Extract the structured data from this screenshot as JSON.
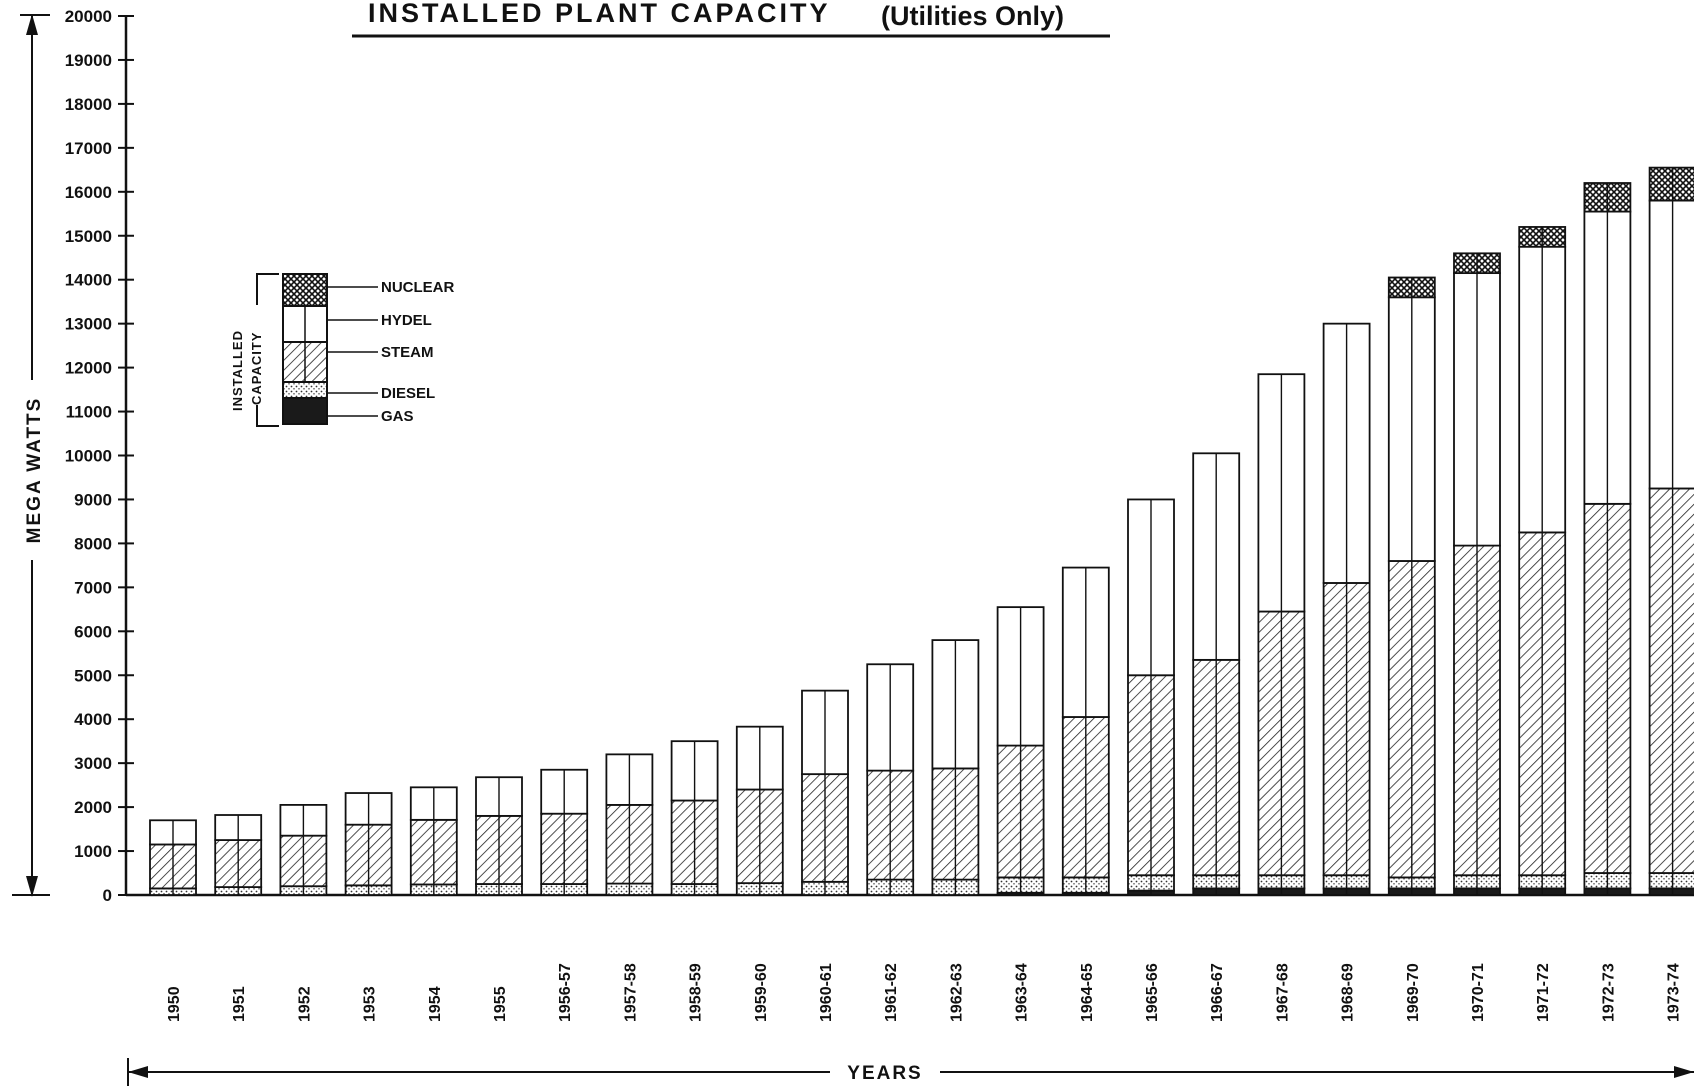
{
  "chart_data": {
    "type": "bar",
    "stacked": true,
    "title": "INSTALLED PLANT CAPACITY",
    "subtitle": "(Utilities Only)",
    "xlabel": "YEARS",
    "ylabel": "MEGA WATTS",
    "ylim": [
      0,
      20000
    ],
    "yticks": [
      0,
      1000,
      2000,
      3000,
      4000,
      5000,
      6000,
      7000,
      8000,
      9000,
      10000,
      11000,
      12000,
      13000,
      14000,
      15000,
      16000,
      17000,
      18000,
      19000,
      20000
    ],
    "ytick_labels": [
      "0",
      "1000",
      "2000",
      "3000",
      "4000",
      "5000",
      "6000",
      "7000",
      "8000",
      "9000",
      "10000",
      "11000",
      "12000",
      "13000",
      "14000",
      "15000",
      "16000",
      "17000",
      "18000",
      "19000",
      "20000"
    ],
    "legend_position": "upper-left",
    "legend_group_label": [
      "INSTALLED",
      "CAPACITY"
    ],
    "grid": false,
    "categories": [
      "1950",
      "1951",
      "1952",
      "1953",
      "1954",
      "1955",
      "1956-57",
      "1957-58",
      "1958-59",
      "1959-60",
      "1960-61",
      "1961-62",
      "1962-63",
      "1963-64",
      "1964-65",
      "1965-66",
      "1966-67",
      "1967-68",
      "1968-69",
      "1969-70",
      "1970-71",
      "1971-72",
      "1972-73",
      "1973-74"
    ],
    "series": [
      {
        "name": "GAS",
        "color": "#1a1a1a",
        "pattern": "solid",
        "values": [
          0,
          0,
          0,
          0,
          0,
          0,
          0,
          0,
          0,
          0,
          0,
          0,
          0,
          50,
          50,
          100,
          150,
          150,
          150,
          150,
          150,
          150,
          150,
          150
        ]
      },
      {
        "name": "DIESEL",
        "color": "#bdbdbd",
        "pattern": "stipple",
        "values": [
          150,
          180,
          200,
          220,
          240,
          250,
          250,
          260,
          250,
          270,
          300,
          350,
          350,
          350,
          350,
          350,
          300,
          300,
          300,
          250,
          300,
          300,
          350,
          350
        ]
      },
      {
        "name": "STEAM",
        "color": "#888888",
        "pattern": "hatch",
        "values": [
          1000,
          1070,
          1150,
          1380,
          1470,
          1550,
          1600,
          1790,
          1900,
          2130,
          2450,
          2480,
          2530,
          3000,
          3650,
          4550,
          4900,
          6000,
          6650,
          7200,
          7500,
          7800,
          8400,
          8750
        ]
      },
      {
        "name": "HYDEL",
        "color": "#ffffff",
        "pattern": "open",
        "values": [
          550,
          570,
          700,
          720,
          740,
          880,
          1000,
          1150,
          1350,
          1430,
          1900,
          2420,
          2920,
          3150,
          3400,
          4000,
          4700,
          5400,
          5900,
          6000,
          6200,
          6500,
          6650,
          6550
        ]
      },
      {
        "name": "NUCLEAR",
        "color": "#555555",
        "pattern": "crosshatch",
        "values": [
          0,
          0,
          0,
          0,
          0,
          0,
          0,
          0,
          0,
          0,
          0,
          0,
          0,
          0,
          0,
          0,
          0,
          0,
          0,
          450,
          450,
          450,
          650,
          750
        ]
      }
    ]
  }
}
